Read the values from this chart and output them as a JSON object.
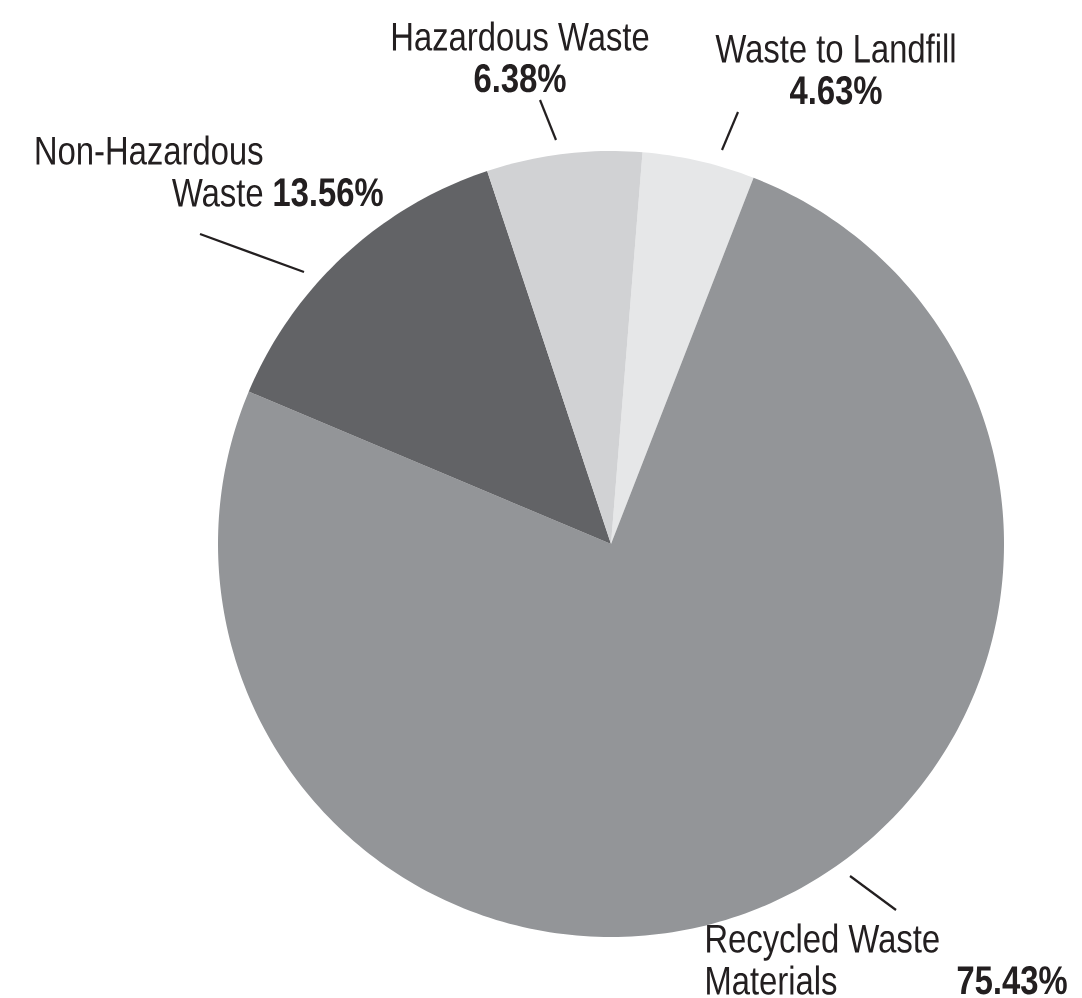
{
  "chart_data": {
    "type": "pie",
    "categories": [
      "Waste to Landfill",
      "Recycled Waste Materials",
      "Non-Hazardous Waste",
      "Hazardous Waste"
    ],
    "values": [
      4.63,
      75.43,
      13.56,
      6.38
    ],
    "colors": [
      "#e6e7e8",
      "#939598",
      "#626366",
      "#d1d2d4"
    ],
    "value_labels": [
      "4.63%",
      "75.43%",
      "13.56%",
      "6.38%"
    ]
  }
}
